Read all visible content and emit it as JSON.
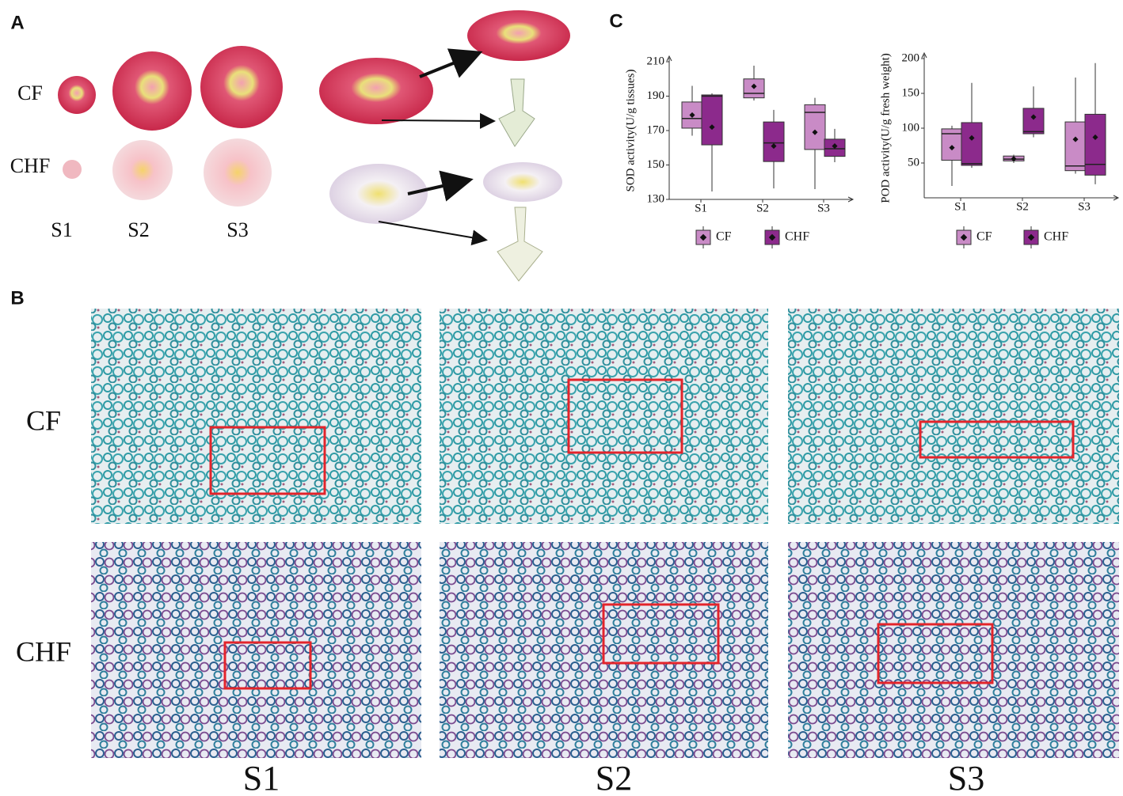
{
  "panel_labels": [
    "A",
    "B",
    "C"
  ],
  "panel_a": {
    "rows": [
      "CF",
      "CHF"
    ],
    "stages": [
      "S1",
      "S2",
      "S3"
    ]
  },
  "panel_b": {
    "rows": [
      "CF",
      "CHF"
    ],
    "stages": [
      "S1",
      "S2",
      "S3"
    ]
  },
  "chart_data": [
    {
      "type": "box",
      "ylabel": "SOD activity(U/g tissues)",
      "categories": [
        "S1",
        "S2",
        "S3"
      ],
      "ylim": [
        130,
        210
      ],
      "yticks": [
        130,
        150,
        170,
        190,
        210
      ],
      "series": [
        {
          "name": "CF",
          "color": "#c98bc6",
          "values": [
            {
              "min": 167,
              "q1": 171.4,
              "median": 177,
              "q3": 186.6,
              "max": 196,
              "mean": 179
            },
            {
              "min": 187.5,
              "q1": 189,
              "median": 191.6,
              "q3": 200,
              "max": 207.7,
              "mean": 195.7
            },
            {
              "min": 136,
              "q1": 159,
              "median": 180.6,
              "q3": 185,
              "max": 189,
              "mean": 169
            }
          ]
        },
        {
          "name": "CHF",
          "color": "#8c2a8c",
          "values": [
            {
              "min": 134.6,
              "q1": 161.7,
              "median": 190,
              "q3": 190.7,
              "max": 191.6,
              "mean": 172
            },
            {
              "min": 136.4,
              "q1": 152,
              "median": 162.8,
              "q3": 175,
              "max": 182,
              "mean": 161
            },
            {
              "min": 151.6,
              "q1": 155,
              "median": 159.4,
              "q3": 165,
              "max": 171,
              "mean": 161
            }
          ]
        }
      ]
    },
    {
      "type": "box",
      "ylabel": "POD activity(U/g fresh weight)",
      "categories": [
        "S1",
        "S2",
        "S3"
      ],
      "ylim": [
        0,
        200
      ],
      "yticks": [
        50,
        100,
        150,
        200
      ],
      "series": [
        {
          "name": "CF",
          "color": "#c98bc6",
          "values": [
            {
              "min": 17,
              "q1": 54,
              "median": 92,
              "q3": 99,
              "max": 103.5,
              "mean": 72
            },
            {
              "min": 50,
              "q1": 53,
              "median": 55.5,
              "q3": 60,
              "max": 62,
              "mean": 56
            },
            {
              "min": 34.7,
              "q1": 39,
              "median": 45.7,
              "q3": 109,
              "max": 172.7,
              "mean": 84
            }
          ]
        },
        {
          "name": "CHF",
          "color": "#8c2a8c",
          "values": [
            {
              "min": 43,
              "q1": 46.6,
              "median": 49,
              "q3": 108,
              "max": 165,
              "mean": 86
            },
            {
              "min": 87,
              "q1": 92,
              "median": 95,
              "q3": 128.5,
              "max": 160,
              "mean": 116
            },
            {
              "min": 19.5,
              "q1": 32.6,
              "median": 48,
              "q3": 120,
              "max": 193.5,
              "mean": 87
            }
          ]
        }
      ]
    }
  ]
}
